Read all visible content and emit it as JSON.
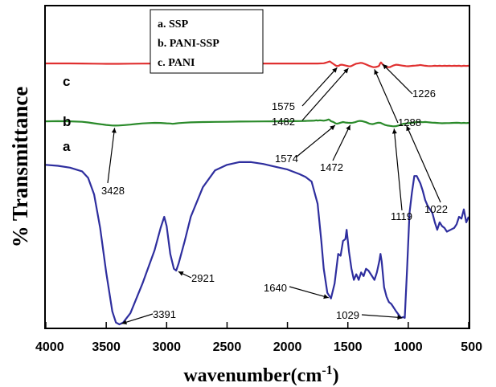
{
  "chart_data": {
    "type": "line",
    "xlabel": "wavenumber(cm",
    "xlabel_sup": "-1",
    "xlabel_close": ")",
    "ylabel": "% Transmittance",
    "xlim": [
      4000,
      500
    ],
    "x_reversed": true,
    "x_ticks": [
      "4000",
      "3500",
      "3000",
      "2500",
      "2000",
      "1500",
      "1000",
      "500"
    ],
    "y_ticks_shown": false,
    "legend": {
      "placement": "top-center",
      "entries": [
        "a. SSP",
        "b. PANI-SSP",
        "c. PANI"
      ]
    },
    "series": [
      {
        "name": "a. SSP",
        "letter": "a",
        "color": "#2e2e9e",
        "points": [
          [
            4000,
            0.86
          ],
          [
            3900,
            0.855
          ],
          [
            3800,
            0.845
          ],
          [
            3700,
            0.825
          ],
          [
            3650,
            0.79
          ],
          [
            3600,
            0.7
          ],
          [
            3550,
            0.52
          ],
          [
            3500,
            0.28
          ],
          [
            3450,
            0.07
          ],
          [
            3420,
            0.01
          ],
          [
            3391,
            0.0
          ],
          [
            3360,
            0.01
          ],
          [
            3300,
            0.06
          ],
          [
            3200,
            0.22
          ],
          [
            3100,
            0.4
          ],
          [
            3050,
            0.52
          ],
          [
            3020,
            0.58
          ],
          [
            3000,
            0.53
          ],
          [
            2970,
            0.38
          ],
          [
            2940,
            0.3
          ],
          [
            2921,
            0.29
          ],
          [
            2900,
            0.33
          ],
          [
            2850,
            0.45
          ],
          [
            2800,
            0.58
          ],
          [
            2700,
            0.74
          ],
          [
            2600,
            0.83
          ],
          [
            2500,
            0.86
          ],
          [
            2400,
            0.875
          ],
          [
            2300,
            0.875
          ],
          [
            2200,
            0.865
          ],
          [
            2100,
            0.85
          ],
          [
            2000,
            0.835
          ],
          [
            1900,
            0.81
          ],
          [
            1850,
            0.795
          ],
          [
            1800,
            0.77
          ],
          [
            1750,
            0.65
          ],
          [
            1720,
            0.45
          ],
          [
            1700,
            0.3
          ],
          [
            1670,
            0.17
          ],
          [
            1640,
            0.14
          ],
          [
            1610,
            0.22
          ],
          [
            1580,
            0.38
          ],
          [
            1560,
            0.37
          ],
          [
            1540,
            0.45
          ],
          [
            1520,
            0.46
          ],
          [
            1510,
            0.51
          ],
          [
            1490,
            0.39
          ],
          [
            1470,
            0.3
          ],
          [
            1450,
            0.24
          ],
          [
            1430,
            0.27
          ],
          [
            1410,
            0.24
          ],
          [
            1390,
            0.28
          ],
          [
            1370,
            0.26
          ],
          [
            1350,
            0.3
          ],
          [
            1330,
            0.29
          ],
          [
            1300,
            0.26
          ],
          [
            1280,
            0.24
          ],
          [
            1260,
            0.28
          ],
          [
            1240,
            0.34
          ],
          [
            1230,
            0.38
          ],
          [
            1220,
            0.34
          ],
          [
            1200,
            0.2
          ],
          [
            1180,
            0.15
          ],
          [
            1160,
            0.12
          ],
          [
            1140,
            0.11
          ],
          [
            1100,
            0.07
          ],
          [
            1060,
            0.035
          ],
          [
            1040,
            0.04
          ],
          [
            1029,
            0.035
          ],
          [
            1010,
            0.3
          ],
          [
            990,
            0.6
          ],
          [
            970,
            0.71
          ],
          [
            950,
            0.8
          ],
          [
            930,
            0.8
          ],
          [
            900,
            0.76
          ],
          [
            880,
            0.72
          ],
          [
            860,
            0.67
          ],
          [
            840,
            0.64
          ],
          [
            800,
            0.6
          ],
          [
            780,
            0.55
          ],
          [
            760,
            0.51
          ],
          [
            740,
            0.55
          ],
          [
            720,
            0.53
          ],
          [
            700,
            0.52
          ],
          [
            680,
            0.5
          ],
          [
            650,
            0.51
          ],
          [
            620,
            0.52
          ],
          [
            600,
            0.54
          ],
          [
            580,
            0.58
          ],
          [
            560,
            0.57
          ],
          [
            540,
            0.62
          ],
          [
            520,
            0.55
          ],
          [
            500,
            0.58
          ]
        ]
      },
      {
        "name": "b. PANI-SSP",
        "letter": "b",
        "color": "#2a8a2a",
        "points": [
          [
            4000,
            0.905
          ],
          [
            3900,
            0.91
          ],
          [
            3800,
            0.905
          ],
          [
            3700,
            0.895
          ],
          [
            3650,
            0.88
          ],
          [
            3600,
            0.86
          ],
          [
            3550,
            0.84
          ],
          [
            3500,
            0.822
          ],
          [
            3450,
            0.81
          ],
          [
            3428,
            0.808
          ],
          [
            3400,
            0.81
          ],
          [
            3350,
            0.818
          ],
          [
            3300,
            0.83
          ],
          [
            3250,
            0.845
          ],
          [
            3200,
            0.858
          ],
          [
            3150,
            0.865
          ],
          [
            3100,
            0.87
          ],
          [
            3050,
            0.868
          ],
          [
            3000,
            0.86
          ],
          [
            2970,
            0.855
          ],
          [
            2950,
            0.848
          ],
          [
            2930,
            0.853
          ],
          [
            2900,
            0.865
          ],
          [
            2850,
            0.875
          ],
          [
            2800,
            0.882
          ],
          [
            2700,
            0.888
          ],
          [
            2600,
            0.892
          ],
          [
            2500,
            0.895
          ],
          [
            2400,
            0.9
          ],
          [
            2300,
            0.902
          ],
          [
            2200,
            0.903
          ],
          [
            2100,
            0.905
          ],
          [
            2000,
            0.908
          ],
          [
            1950,
            0.91
          ],
          [
            1900,
            0.912
          ],
          [
            1850,
            0.915
          ],
          [
            1800,
            0.918
          ],
          [
            1780,
            0.92
          ],
          [
            1760,
            0.93
          ],
          [
            1750,
            0.922
          ],
          [
            1730,
            0.93
          ],
          [
            1700,
            0.92
          ],
          [
            1680,
            0.93
          ],
          [
            1660,
            0.948
          ],
          [
            1650,
            0.935
          ],
          [
            1640,
            0.91
          ],
          [
            1620,
            0.89
          ],
          [
            1600,
            0.855
          ],
          [
            1590,
            0.85
          ],
          [
            1575,
            0.86
          ],
          [
            1560,
            0.875
          ],
          [
            1540,
            0.888
          ],
          [
            1520,
            0.877
          ],
          [
            1500,
            0.872
          ],
          [
            1482,
            0.87
          ],
          [
            1472,
            0.868
          ],
          [
            1460,
            0.875
          ],
          [
            1440,
            0.885
          ],
          [
            1420,
            0.905
          ],
          [
            1400,
            0.915
          ],
          [
            1380,
            0.91
          ],
          [
            1350,
            0.885
          ],
          [
            1320,
            0.85
          ],
          [
            1300,
            0.84
          ],
          [
            1288,
            0.845
          ],
          [
            1270,
            0.86
          ],
          [
            1250,
            0.875
          ],
          [
            1230,
            0.87
          ],
          [
            1210,
            0.845
          ],
          [
            1190,
            0.82
          ],
          [
            1170,
            0.808
          ],
          [
            1150,
            0.8
          ],
          [
            1130,
            0.793
          ],
          [
            1119,
            0.79
          ],
          [
            1100,
            0.795
          ],
          [
            1080,
            0.81
          ],
          [
            1060,
            0.83
          ],
          [
            1040,
            0.85
          ],
          [
            1022,
            0.855
          ],
          [
            1000,
            0.862
          ],
          [
            980,
            0.87
          ],
          [
            960,
            0.875
          ],
          [
            940,
            0.885
          ],
          [
            920,
            0.888
          ],
          [
            900,
            0.89
          ],
          [
            880,
            0.885
          ],
          [
            860,
            0.89
          ],
          [
            840,
            0.885
          ],
          [
            820,
            0.88
          ],
          [
            800,
            0.875
          ],
          [
            780,
            0.872
          ],
          [
            760,
            0.868
          ],
          [
            740,
            0.865
          ],
          [
            720,
            0.862
          ],
          [
            700,
            0.863
          ],
          [
            680,
            0.865
          ],
          [
            660,
            0.865
          ],
          [
            640,
            0.868
          ],
          [
            620,
            0.87
          ],
          [
            600,
            0.872
          ],
          [
            580,
            0.87
          ],
          [
            560,
            0.865
          ],
          [
            540,
            0.87
          ],
          [
            520,
            0.865
          ],
          [
            500,
            0.87
          ]
        ]
      },
      {
        "name": "c. PANI",
        "letter": "c",
        "color": "#e03030",
        "points": [
          [
            4000,
            0.962
          ],
          [
            3900,
            0.962
          ],
          [
            3800,
            0.961
          ],
          [
            3700,
            0.959
          ],
          [
            3600,
            0.955
          ],
          [
            3500,
            0.952
          ],
          [
            3450,
            0.951
          ],
          [
            3400,
            0.952
          ],
          [
            3300,
            0.955
          ],
          [
            3200,
            0.958
          ],
          [
            3100,
            0.96
          ],
          [
            3000,
            0.961
          ],
          [
            2900,
            0.962
          ],
          [
            2800,
            0.963
          ],
          [
            2700,
            0.963
          ],
          [
            2600,
            0.963
          ],
          [
            2500,
            0.962
          ],
          [
            2400,
            0.962
          ],
          [
            2300,
            0.961
          ],
          [
            2200,
            0.96
          ],
          [
            2100,
            0.96
          ],
          [
            2000,
            0.96
          ],
          [
            1900,
            0.96
          ],
          [
            1800,
            0.96
          ],
          [
            1750,
            0.96
          ],
          [
            1700,
            0.965
          ],
          [
            1680,
            0.98
          ],
          [
            1660,
            1.0
          ],
          [
            1650,
            1.01
          ],
          [
            1640,
            0.99
          ],
          [
            1620,
            0.95
          ],
          [
            1600,
            0.91
          ],
          [
            1590,
            0.9
          ],
          [
            1575,
            0.905
          ],
          [
            1565,
            0.925
          ],
          [
            1550,
            0.93
          ],
          [
            1530,
            0.92
          ],
          [
            1510,
            0.905
          ],
          [
            1495,
            0.895
          ],
          [
            1482,
            0.89
          ],
          [
            1470,
            0.9
          ],
          [
            1450,
            0.93
          ],
          [
            1430,
            0.955
          ],
          [
            1410,
            0.965
          ],
          [
            1395,
            0.975
          ],
          [
            1380,
            0.972
          ],
          [
            1360,
            0.95
          ],
          [
            1340,
            0.925
          ],
          [
            1320,
            0.9
          ],
          [
            1300,
            0.88
          ],
          [
            1288,
            0.872
          ],
          [
            1270,
            0.875
          ],
          [
            1250,
            0.89
          ],
          [
            1240,
            0.91
          ],
          [
            1235,
            0.95
          ],
          [
            1226,
            0.985
          ],
          [
            1218,
            0.96
          ],
          [
            1210,
            0.93
          ],
          [
            1195,
            0.89
          ],
          [
            1185,
            0.875
          ],
          [
            1170,
            0.872
          ],
          [
            1150,
            0.875
          ],
          [
            1140,
            0.89
          ],
          [
            1120,
            0.915
          ],
          [
            1100,
            0.93
          ],
          [
            1080,
            0.925
          ],
          [
            1060,
            0.915
          ],
          [
            1040,
            0.905
          ],
          [
            1020,
            0.898
          ],
          [
            1000,
            0.895
          ],
          [
            980,
            0.9
          ],
          [
            960,
            0.905
          ],
          [
            940,
            0.91
          ],
          [
            920,
            0.915
          ],
          [
            900,
            0.925
          ],
          [
            880,
            0.915
          ],
          [
            860,
            0.905
          ],
          [
            840,
            0.9
          ],
          [
            820,
            0.898
          ],
          [
            800,
            0.9
          ],
          [
            780,
            0.905
          ],
          [
            760,
            0.9
          ],
          [
            740,
            0.905
          ],
          [
            720,
            0.9
          ],
          [
            700,
            0.905
          ],
          [
            680,
            0.902
          ],
          [
            660,
            0.905
          ],
          [
            640,
            0.9
          ],
          [
            620,
            0.905
          ],
          [
            600,
            0.902
          ],
          [
            580,
            0.905
          ],
          [
            560,
            0.898
          ],
          [
            540,
            0.905
          ],
          [
            520,
            0.9
          ],
          [
            500,
            0.905
          ]
        ]
      }
    ],
    "annotations": [
      {
        "text": "3391",
        "series": "a",
        "x": 3391
      },
      {
        "text": "2921",
        "series": "a",
        "x": 2921
      },
      {
        "text": "1640",
        "series": "a",
        "x": 1640
      },
      {
        "text": "1029",
        "series": "a",
        "x": 1029
      },
      {
        "text": "3428",
        "series": "b",
        "x": 3428
      },
      {
        "text": "1574",
        "series": "b",
        "x": 1590
      },
      {
        "text": "1472",
        "series": "b",
        "x": 1472
      },
      {
        "text": "1119",
        "series": "b",
        "x": 1119
      },
      {
        "text": "1022",
        "series": "b",
        "x": 1022
      },
      {
        "text": "1575",
        "series": "c",
        "x": 1575
      },
      {
        "text": "1482",
        "series": "c",
        "x": 1482
      },
      {
        "text": "1226",
        "series": "c",
        "x": 1226
      },
      {
        "text": "1288",
        "series": "c",
        "x": 1288
      }
    ]
  }
}
